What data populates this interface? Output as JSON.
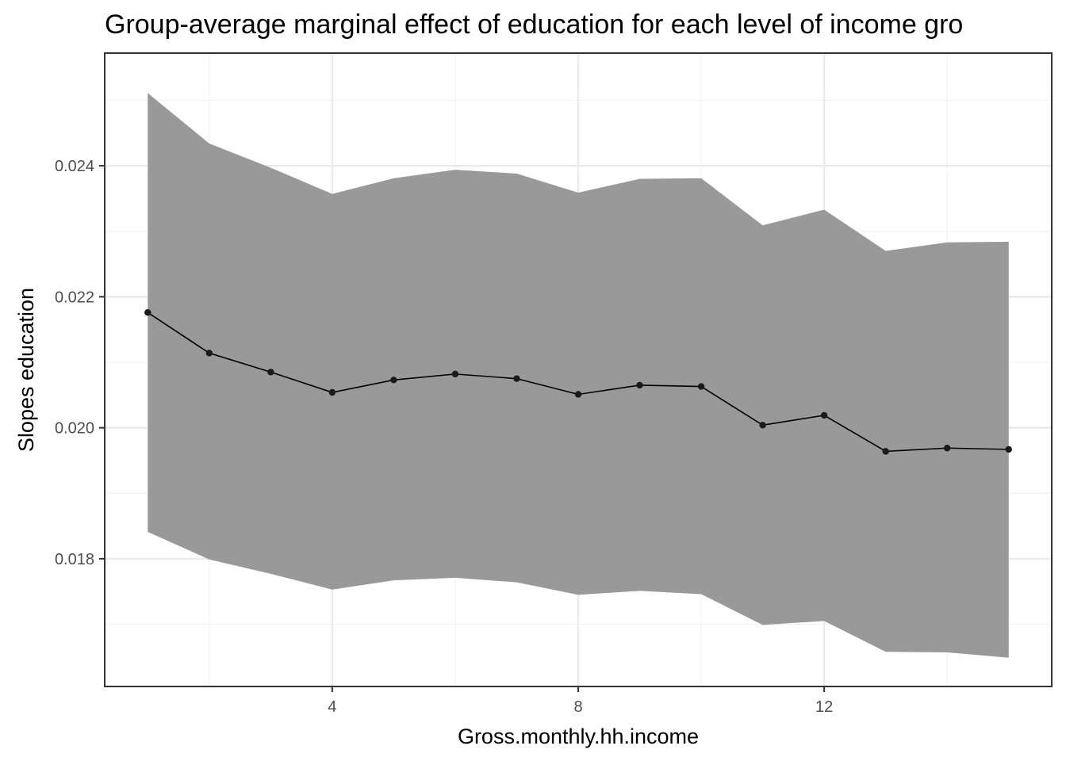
{
  "chart_data": {
    "type": "line",
    "title": "Group-average marginal effect of education for each level of income gro",
    "xlabel": "Gross.monthly.hh.income",
    "ylabel": "Slopes education",
    "xlim": [
      0.3,
      15.7
    ],
    "ylim": [
      0.01605,
      0.02572
    ],
    "x_ticks": [
      4,
      8,
      12
    ],
    "x_tick_labels": [
      "4",
      "8",
      "12"
    ],
    "y_ticks": [
      0.018,
      0.02,
      0.022,
      0.024
    ],
    "y_tick_labels": [
      "0.018",
      "0.020",
      "0.022",
      "0.024"
    ],
    "grid": true,
    "series": [
      {
        "x": [
          1,
          2,
          3,
          4,
          5,
          6,
          7,
          8,
          9,
          10,
          11,
          12,
          13,
          14,
          15
        ],
        "values": [
          0.02176,
          0.02114,
          0.02085,
          0.02054,
          0.02073,
          0.02082,
          0.02075,
          0.02051,
          0.02065,
          0.02063,
          0.02004,
          0.02019,
          0.01964,
          0.01969,
          0.01967
        ],
        "lower": [
          0.01841,
          0.01799,
          0.01777,
          0.01753,
          0.01767,
          0.01771,
          0.01764,
          0.01745,
          0.01751,
          0.01746,
          0.01699,
          0.01705,
          0.01658,
          0.01657,
          0.01649
        ],
        "upper": [
          0.02511,
          0.02434,
          0.02397,
          0.02357,
          0.02381,
          0.02394,
          0.02388,
          0.02359,
          0.0238,
          0.02381,
          0.02309,
          0.02333,
          0.0227,
          0.02283,
          0.02284
        ]
      }
    ],
    "colors": {
      "ribbon": "#999999",
      "line": "#000000",
      "point": "#1a1a1a",
      "grid_major": "#ebebeb",
      "grid_minor": "#f3f3f3",
      "border": "#333333"
    }
  }
}
